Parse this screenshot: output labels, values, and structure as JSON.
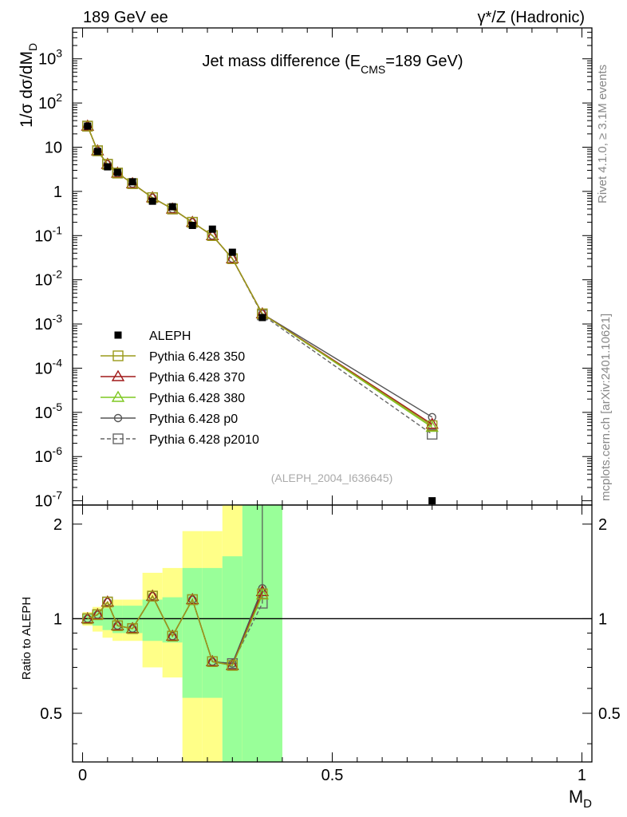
{
  "header": {
    "left": "189 GeV ee",
    "right": "γ*/Z (Hadronic)"
  },
  "side_text": {
    "version": "Rivet 4.1.0, ≥ 3.1M events",
    "source": "mcplots.cern.ch [arXiv:2401.10621]"
  },
  "watermark": "(ALEPH_2004_I636645)",
  "chart_data": [
    {
      "type": "line",
      "panel": "main",
      "title": "Jet mass difference (E_CMS=189 GeV)",
      "title_parts": {
        "a": "Jet mass difference (E",
        "sub": "CMS",
        "b": "=189 GeV)"
      },
      "xlabel": "M_D",
      "ylabel": "1/σ dσ/dM_D",
      "ylabel_parts": {
        "main": "1/σ  dσ/dM",
        "sub": "D"
      },
      "yscale": "log",
      "xlim": [
        -0.02,
        1.02
      ],
      "ylim": [
        8e-08,
        5000
      ],
      "y_tick_labels": [
        {
          "value": 1e-07,
          "base": "10",
          "exp": "-7"
        },
        {
          "value": 1e-06,
          "base": "10",
          "exp": "-6"
        },
        {
          "value": 1e-05,
          "base": "10",
          "exp": "-5"
        },
        {
          "value": 0.0001,
          "base": "10",
          "exp": "-4"
        },
        {
          "value": 0.001,
          "base": "10",
          "exp": "-3"
        },
        {
          "value": 0.01,
          "base": "10",
          "exp": "-2"
        },
        {
          "value": 0.1,
          "base": "10",
          "exp": "-1"
        },
        {
          "value": 1,
          "base": "1",
          "exp": ""
        },
        {
          "value": 10,
          "base": "10",
          "exp": ""
        },
        {
          "value": 100,
          "base": "10",
          "exp": "2"
        },
        {
          "value": 1000,
          "base": "10",
          "exp": "3"
        }
      ],
      "x": [
        0.01,
        0.03,
        0.05,
        0.07,
        0.1,
        0.14,
        0.18,
        0.22,
        0.26,
        0.3,
        0.36,
        0.7
      ],
      "x_bin_edges": [
        0.0,
        0.02,
        0.04,
        0.06,
        0.08,
        0.12,
        0.16,
        0.2,
        0.24,
        0.28,
        0.32,
        0.4,
        1.0
      ],
      "data": {
        "name": "ALEPH",
        "values": [
          30.0,
          8.0,
          3.6,
          2.7,
          1.65,
          0.6,
          0.45,
          0.17,
          0.14,
          0.042,
          0.0014,
          1e-07
        ]
      },
      "series": [
        {
          "name": "Pythia 6.428 350",
          "color": "#9a9a1a",
          "marker": "square-open",
          "dash": "solid",
          "values": [
            30.0,
            8.3,
            4.1,
            2.6,
            1.5,
            0.72,
            0.4,
            0.2,
            0.1,
            0.03,
            0.0017,
            5e-06
          ]
        },
        {
          "name": "Pythia 6.428 370",
          "color": "#a01818",
          "marker": "triangle-open",
          "dash": "solid",
          "values": [
            30.0,
            8.3,
            4.1,
            2.6,
            1.5,
            0.72,
            0.4,
            0.2,
            0.1,
            0.03,
            0.0017,
            5.4e-06
          ]
        },
        {
          "name": "Pythia 6.428 380",
          "color": "#7ec820",
          "marker": "triangle-open",
          "dash": "solid",
          "values": [
            30.0,
            8.3,
            4.1,
            2.6,
            1.5,
            0.72,
            0.4,
            0.2,
            0.1,
            0.03,
            0.0017,
            4.6e-06
          ]
        },
        {
          "name": "Pythia 6.428 p0",
          "color": "#555555",
          "marker": "circle-open",
          "dash": "solid",
          "values": [
            30.0,
            8.3,
            4.1,
            2.6,
            1.5,
            0.72,
            0.4,
            0.2,
            0.1,
            0.03,
            0.0017,
            7.8e-06
          ]
        },
        {
          "name": "Pythia 6.428 p2010",
          "color": "#666666",
          "marker": "square-open",
          "dash": "dashed",
          "values": [
            30.0,
            8.3,
            4.1,
            2.6,
            1.5,
            0.72,
            0.4,
            0.2,
            0.1,
            0.03,
            0.0016,
            3.2e-06
          ]
        }
      ]
    },
    {
      "type": "line",
      "panel": "ratio",
      "ylabel": "Ratio to ALEPH",
      "xlabel": "M_D",
      "xlabel_parts": {
        "main": "M",
        "sub": "D"
      },
      "xlim": [
        -0.02,
        1.02
      ],
      "ylim": [
        0.35,
        2.3
      ],
      "yscale": "log",
      "y_ticks": [
        0.5,
        1,
        2
      ],
      "y_tick_labels": [
        "0.5",
        "1",
        "2"
      ],
      "x_ticks": [
        0,
        0.5,
        1
      ],
      "x_tick_labels": [
        "0",
        "0.5",
        "1"
      ],
      "reference_line": 1,
      "bands": [
        {
          "x0": 0.0,
          "x1": 0.02,
          "inner": [
            0.97,
            1.03
          ],
          "outer": [
            0.95,
            1.05
          ]
        },
        {
          "x0": 0.02,
          "x1": 0.04,
          "inner": [
            0.95,
            1.06
          ],
          "outer": [
            0.91,
            1.09
          ]
        },
        {
          "x0": 0.04,
          "x1": 0.06,
          "inner": [
            0.92,
            1.08
          ],
          "outer": [
            0.87,
            1.13
          ]
        },
        {
          "x0": 0.06,
          "x1": 0.08,
          "inner": [
            0.9,
            1.1
          ],
          "outer": [
            0.85,
            1.15
          ]
        },
        {
          "x0": 0.08,
          "x1": 0.12,
          "inner": [
            0.9,
            1.1
          ],
          "outer": [
            0.85,
            1.15
          ]
        },
        {
          "x0": 0.12,
          "x1": 0.16,
          "inner": [
            0.85,
            1.15
          ],
          "outer": [
            0.7,
            1.4
          ]
        },
        {
          "x0": 0.16,
          "x1": 0.2,
          "inner": [
            0.84,
            1.17
          ],
          "outer": [
            0.65,
            1.45
          ]
        },
        {
          "x0": 0.2,
          "x1": 0.24,
          "inner": [
            0.56,
            1.45
          ],
          "outer": [
            0.35,
            1.9
          ]
        },
        {
          "x0": 0.24,
          "x1": 0.28,
          "inner": [
            0.56,
            1.45
          ],
          "outer": [
            0.35,
            1.9
          ]
        },
        {
          "x0": 0.28,
          "x1": 0.32,
          "inner": [
            0.35,
            1.58
          ],
          "outer": [
            0.35,
            2.3
          ]
        },
        {
          "x0": 0.32,
          "x1": 0.4,
          "inner": [
            0.35,
            2.3
          ],
          "outer": [
            0.35,
            2.3
          ]
        }
      ],
      "x": [
        0.01,
        0.03,
        0.05,
        0.07,
        0.1,
        0.14,
        0.18,
        0.22,
        0.26,
        0.3,
        0.36
      ],
      "series": [
        {
          "name": "Pythia 6.428 350",
          "values": [
            1.0,
            1.03,
            1.13,
            0.95,
            0.93,
            1.18,
            0.88,
            1.15,
            0.73,
            0.71,
            1.2
          ]
        },
        {
          "name": "Pythia 6.428 370",
          "values": [
            1.0,
            1.03,
            1.13,
            0.95,
            0.93,
            1.18,
            0.88,
            1.15,
            0.73,
            0.71,
            1.22
          ]
        },
        {
          "name": "Pythia 6.428 380",
          "values": [
            1.0,
            1.03,
            1.13,
            0.95,
            0.93,
            1.18,
            0.88,
            1.15,
            0.73,
            0.71,
            1.19
          ]
        },
        {
          "name": "Pythia 6.428 p0",
          "values": [
            1.0,
            1.03,
            1.13,
            0.95,
            0.93,
            1.18,
            0.88,
            1.15,
            0.73,
            0.72,
            1.25
          ]
        },
        {
          "name": "Pythia 6.428 p2010",
          "values": [
            1.0,
            1.03,
            1.13,
            0.95,
            0.93,
            1.18,
            0.88,
            1.15,
            0.73,
            0.72,
            1.12
          ]
        }
      ]
    }
  ],
  "colors": {
    "band_inner": "#99ff99",
    "band_outer": "#ffff88",
    "data_marker": "#000000"
  }
}
